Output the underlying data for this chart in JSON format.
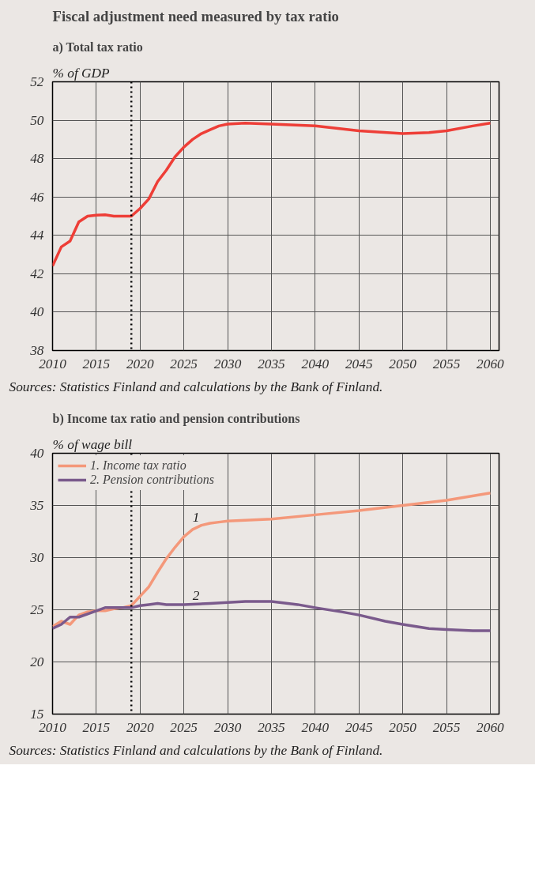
{
  "chart_data": [
    {
      "type": "line",
      "title": "Fiscal adjustment need measured by tax ratio",
      "subtitle": "a) Total tax ratio",
      "ylabel": "% of GDP",
      "x": [
        2010,
        2011,
        2012,
        2013,
        2014,
        2015,
        2016,
        2017,
        2018,
        2019,
        2020,
        2021,
        2022,
        2023,
        2024,
        2025,
        2026,
        2027,
        2028,
        2029,
        2030,
        2032,
        2035,
        2040,
        2045,
        2050,
        2053,
        2055,
        2058,
        2060
      ],
      "series": [
        {
          "color": "#ee3e37",
          "values": [
            42.4,
            43.4,
            43.7,
            44.7,
            45.0,
            45.05,
            45.07,
            45.0,
            45.0,
            45.0,
            45.4,
            45.9,
            46.8,
            47.4,
            48.1,
            48.6,
            49.0,
            49.3,
            49.5,
            49.7,
            49.8,
            49.85,
            49.8,
            49.7,
            49.45,
            49.3,
            49.35,
            49.45,
            49.7,
            49.85
          ]
        }
      ],
      "xlim": [
        2010,
        2061
      ],
      "xticks": [
        2010,
        2015,
        2020,
        2025,
        2030,
        2035,
        2040,
        2045,
        2050,
        2055,
        2060
      ],
      "ylim": [
        38,
        52
      ],
      "yticks": [
        38,
        40,
        42,
        44,
        46,
        48,
        50,
        52
      ],
      "ref_lines": [
        {
          "axis": "x",
          "value": 2019,
          "label": null,
          "color": "#000000",
          "line_style": "dotted"
        }
      ],
      "annotations": [
        "Sources: Statistics Finland and calculations by the Bank of Finland."
      ],
      "grid": true,
      "legend": false,
      "line_style": "solid",
      "marker": "none"
    },
    {
      "type": "line",
      "title": "b) Income tax ratio and pension contributions",
      "ylabel": "% of wage bill",
      "series": [
        {
          "name": "1. Income tax ratio",
          "color": "#f4987a",
          "x": [
            2010,
            2011,
            2012,
            2013,
            2014,
            2015,
            2016,
            2017,
            2018,
            2019,
            2020,
            2021,
            2022,
            2023,
            2024,
            2025,
            2026,
            2027,
            2028,
            2029,
            2030,
            2035,
            2040,
            2045,
            2050,
            2055,
            2060
          ],
          "values": [
            23.4,
            23.9,
            23.6,
            24.5,
            24.8,
            24.9,
            24.9,
            25.1,
            25.2,
            25.4,
            26.3,
            27.2,
            28.6,
            29.9,
            31.0,
            32.0,
            32.7,
            33.1,
            33.3,
            33.4,
            33.5,
            33.7,
            34.1,
            34.5,
            35.0,
            35.5,
            36.2
          ]
        },
        {
          "name": "2. Pension contributions",
          "color": "#7a5a8c",
          "x": [
            2010,
            2011,
            2012,
            2013,
            2014,
            2015,
            2016,
            2017,
            2018,
            2019,
            2020,
            2021,
            2022,
            2023,
            2025,
            2028,
            2030,
            2032,
            2035,
            2038,
            2040,
            2043,
            2045,
            2048,
            2050,
            2053,
            2055,
            2058,
            2060
          ],
          "values": [
            23.2,
            23.6,
            24.3,
            24.3,
            24.6,
            24.9,
            25.2,
            25.2,
            25.2,
            25.2,
            25.4,
            25.5,
            25.6,
            25.5,
            25.5,
            25.6,
            25.7,
            25.8,
            25.8,
            25.5,
            25.2,
            24.8,
            24.5,
            23.9,
            23.6,
            23.2,
            23.1,
            23.0,
            23.0
          ]
        }
      ],
      "xlim": [
        2010,
        2061
      ],
      "xticks": [
        2010,
        2015,
        2020,
        2025,
        2030,
        2035,
        2040,
        2045,
        2050,
        2055,
        2060
      ],
      "ylim": [
        15,
        40
      ],
      "yticks": [
        15,
        20,
        25,
        30,
        35,
        40
      ],
      "ref_lines": [
        {
          "axis": "x",
          "value": 2019,
          "label": null,
          "color": "#000000",
          "line_style": "dotted"
        }
      ],
      "annotations": [
        {
          "text": "1",
          "x": 2026,
          "y": 33.0
        },
        {
          "text": "2",
          "x": 2026,
          "y": 25.5
        },
        "Sources: Statistics Finland and calculations by the Bank of Finland."
      ],
      "grid": true,
      "legend": "top left",
      "line_style": "solid",
      "marker": "none"
    }
  ]
}
